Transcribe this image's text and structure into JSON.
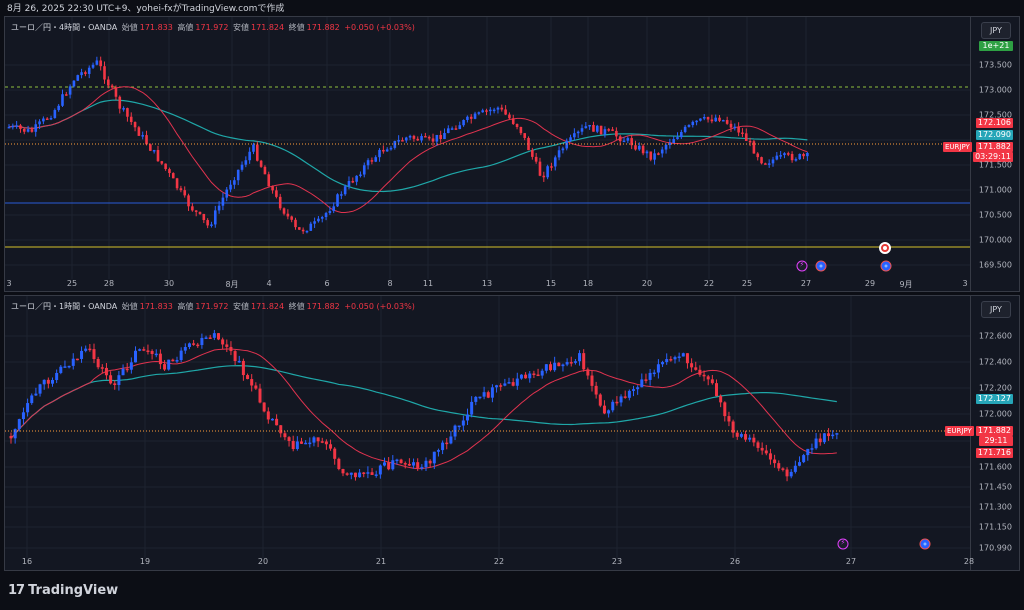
{
  "header": {
    "caption": "8月 26, 2025 22:30 UTC+9、yohei-fxがTradingView.comで作成"
  },
  "brand": {
    "logo": "17",
    "name": "TradingView"
  },
  "panes": [
    {
      "legend": {
        "symbol": "ユーロ／円・4時間・OANDA",
        "open_label": "始値",
        "open": "171.833",
        "high_label": "高値",
        "high": "171.972",
        "low_label": "安値",
        "low": "171.824",
        "close_label": "終値",
        "close": "171.882",
        "change": "+0.050 (+0.03%)"
      },
      "currency_button": "JPY",
      "price_ticks": [
        "173.500",
        "173.000",
        "172.500",
        "172.000",
        "171.500",
        "171.000",
        "170.500",
        "170.000",
        "169.500"
      ],
      "price_tags": {
        "green": "1e+21",
        "ma_red": "172.106",
        "ma_cyan": "172.090",
        "last": "171.882",
        "countdown": "03:29:11",
        "symbol": "EURJPY"
      },
      "x_labels": [
        "3",
        "25",
        "28",
        "30",
        "8月",
        "4",
        "6",
        "8",
        "11",
        "13",
        "15",
        "18",
        "20",
        "22",
        "25",
        "27",
        "29",
        "9月",
        "3"
      ]
    },
    {
      "legend": {
        "symbol": "ユーロ／円・1時間・OANDA",
        "open_label": "始値",
        "open": "171.833",
        "high_label": "高値",
        "high": "171.972",
        "low_label": "安値",
        "low": "171.824",
        "close_label": "終値",
        "close": "171.882",
        "change": "+0.050 (+0.03%)"
      },
      "currency_button": "JPY",
      "price_ticks": [
        "172.600",
        "172.400",
        "172.200",
        "172.000",
        "171.800",
        "171.600",
        "171.450",
        "171.300",
        "171.150",
        "170.990"
      ],
      "price_tags": {
        "ma_cyan": "172.127",
        "last": "171.882",
        "countdown": "29:11",
        "ma_red": "171.716",
        "symbol": "EURJPY"
      },
      "x_labels": [
        "16",
        "19",
        "20",
        "21",
        "22",
        "23",
        "26",
        "27",
        "28"
      ]
    }
  ],
  "colors": {
    "up": "#2962ff",
    "down": "#f23645",
    "ma_fast": "#e0334f",
    "ma_slow": "#1fa7a8",
    "level_green": "#8fbf3f",
    "level_yellow": "#d4c22a",
    "level_blue": "#2a5bd7",
    "last_line": "#ff9e3b"
  },
  "icons": [
    "lightning-event-icon",
    "economic-event-icon",
    "dividend-event-icon"
  ]
}
